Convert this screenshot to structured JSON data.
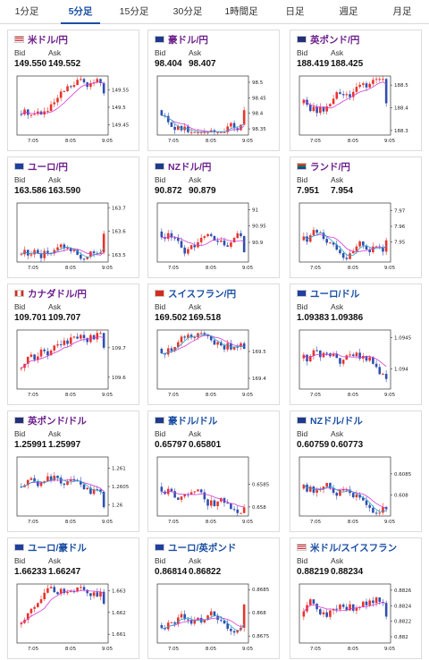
{
  "tabs": [
    {
      "label": "1分足",
      "active": false
    },
    {
      "label": "5分足",
      "active": true
    },
    {
      "label": "15分足",
      "active": false
    },
    {
      "label": "30分足",
      "active": false
    },
    {
      "label": "1時間足",
      "active": false
    },
    {
      "label": "日足",
      "active": false
    },
    {
      "label": "週足",
      "active": false
    },
    {
      "label": "月足",
      "active": false
    }
  ],
  "colors": {
    "bull": "#e8332b",
    "bear": "#2f4fb0",
    "ma": "#d23bd6",
    "ma2": "#27a7c8",
    "pair_purple": "#6c1f8c",
    "pair_blue": "#1a4fa3"
  },
  "labels": {
    "bid": "Bid",
    "ask": "Ask"
  },
  "x_ticks": [
    "7:05",
    "8:05",
    "9:05"
  ],
  "cards": [
    {
      "pair": "米ドル/円",
      "flag": "us-flag-icon",
      "bid": "149.550",
      "ask": "149.552",
      "y_ticks": [
        "149.55",
        "149.5",
        "149.45"
      ],
      "chart_data": {
        "type": "candlestick",
        "ylim": [
          149.42,
          149.59
        ],
        "trend": "up",
        "end_value": 149.54
      }
    },
    {
      "pair": "豪ドル/円",
      "flag": "au-flag-icon",
      "bid": "98.404",
      "ask": "98.407",
      "y_ticks": [
        "98.5",
        "98.45",
        "98.4",
        "98.35"
      ],
      "chart_data": {
        "type": "candlestick",
        "ylim": [
          98.33,
          98.52
        ],
        "trend": "sideways",
        "end_value": 98.41
      }
    },
    {
      "pair": "英ポンド/円",
      "flag": "gb-flag-icon",
      "bid": "188.419",
      "ask": "188.425",
      "y_ticks": [
        "188.5",
        "188.4",
        "188.3"
      ],
      "chart_data": {
        "type": "candlestick",
        "ylim": [
          188.28,
          188.54
        ],
        "trend": "sideways",
        "end_value": 188.42
      }
    },
    {
      "pair": "ユーロ/円",
      "flag": "eu-flag-icon",
      "bid": "163.586",
      "ask": "163.590",
      "y_ticks": [
        "163.7",
        "163.6",
        "163.5"
      ],
      "chart_data": {
        "type": "candlestick",
        "ylim": [
          163.47,
          163.72
        ],
        "trend": "up",
        "end_value": 163.59
      }
    },
    {
      "pair": "NZドル/円",
      "flag": "nz-flag-icon",
      "bid": "90.872",
      "ask": "90.879",
      "y_ticks": [
        "91",
        "90.95",
        "90.9"
      ],
      "chart_data": {
        "type": "candlestick",
        "ylim": [
          90.84,
          91.02
        ],
        "trend": "down",
        "end_value": 90.87
      }
    },
    {
      "pair": "ランド/円",
      "flag": "za-flag-icon",
      "bid": "7.951",
      "ask": "7.954",
      "y_ticks": [
        "7.97",
        "7.96",
        "7.95"
      ],
      "chart_data": {
        "type": "candlestick",
        "ylim": [
          7.937,
          7.975
        ],
        "trend": "sideways",
        "end_value": 7.951
      }
    },
    {
      "pair": "カナダドル/円",
      "flag": "ca-flag-icon",
      "bid": "109.701",
      "ask": "109.707",
      "y_ticks": [
        "109.7",
        "109.6"
      ],
      "chart_data": {
        "type": "candlestick",
        "ylim": [
          109.56,
          109.76
        ],
        "trend": "up",
        "end_value": 109.7
      }
    },
    {
      "pair": "スイスフラン/円",
      "flag": "ch-flag-icon",
      "bid": "169.502",
      "ask": "169.518",
      "y_ticks": [
        "169.5",
        "169.4"
      ],
      "chart_data": {
        "type": "candlestick",
        "ylim": [
          169.36,
          169.58
        ],
        "trend": "sideways",
        "end_value": 169.51
      }
    },
    {
      "pair": "ユーロ/ドル",
      "flag": "eu-us-flag-icon",
      "bid": "1.09383",
      "ask": "1.09386",
      "y_ticks": [
        "1.0945",
        "1.094"
      ],
      "chart_data": {
        "type": "candlestick",
        "ylim": [
          1.09368,
          1.09462
        ],
        "trend": "down",
        "end_value": 1.09384
      }
    },
    {
      "pair": "英ポンド/ドル",
      "flag": "gb-us-flag-icon",
      "bid": "1.25991",
      "ask": "1.25997",
      "y_ticks": [
        "1.261",
        "1.2605",
        "1.26"
      ],
      "chart_data": {
        "type": "candlestick",
        "ylim": [
          1.2597,
          1.2613
        ],
        "trend": "down",
        "end_value": 1.25994
      }
    },
    {
      "pair": "豪ドル/ドル",
      "flag": "au-us-flag-icon",
      "bid": "0.65797",
      "ask": "0.65801",
      "y_ticks": [
        "0.6585",
        "0.658"
      ],
      "chart_data": {
        "type": "candlestick",
        "ylim": [
          0.6578,
          0.6591
        ],
        "trend": "down",
        "end_value": 0.65799
      }
    },
    {
      "pair": "NZドル/ドル",
      "flag": "nz-us-flag-icon",
      "bid": "0.60759",
      "ask": "0.60773",
      "y_ticks": [
        "0.6085",
        "0.608"
      ],
      "chart_data": {
        "type": "candlestick",
        "ylim": [
          0.6075,
          0.6089
        ],
        "trend": "down",
        "end_value": 0.60766
      }
    },
    {
      "pair": "ユーロ/豪ドル",
      "flag": "eu-au-flag-icon",
      "bid": "1.66233",
      "ask": "1.66247",
      "y_ticks": [
        "1.663",
        "1.662",
        "1.661"
      ],
      "chart_data": {
        "type": "candlestick",
        "ylim": [
          1.6606,
          1.6633
        ],
        "trend": "up",
        "end_value": 1.6624
      }
    },
    {
      "pair": "ユーロ/英ポンド",
      "flag": "eu-gb-flag-icon",
      "bid": "0.86814",
      "ask": "0.86822",
      "y_ticks": [
        "0.8685",
        "0.868",
        "0.8675"
      ],
      "chart_data": {
        "type": "candlestick",
        "ylim": [
          0.86735,
          0.86862
        ],
        "trend": "up",
        "end_value": 0.86818
      }
    },
    {
      "pair": "米ドル/スイスフラン",
      "flag": "us-ch-flag-icon",
      "bid": "0.88219",
      "ask": "0.88234",
      "y_ticks": [
        "0.8826",
        "0.8824",
        "0.8822",
        "0.882"
      ],
      "chart_data": {
        "type": "candlestick",
        "ylim": [
          0.88192,
          0.88268
        ],
        "trend": "sideways",
        "end_value": 0.88226
      }
    }
  ]
}
